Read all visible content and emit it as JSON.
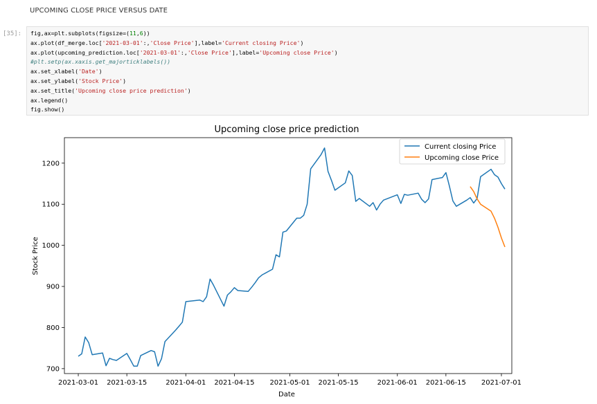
{
  "heading": "UPCOMING CLOSE PRICE VERSUS DATE",
  "cell": {
    "prompt": "[35]:",
    "lines": [
      {
        "text": "fig,ax=plt.subplots(figsize=(11,6))",
        "kind": "plain"
      },
      {
        "text": "ax.plot(df_merge.loc['2021-03-01':,'Close Price'],label='Current closing Price')",
        "kind": "plain"
      },
      {
        "text": "ax.plot(upcoming_prediction.loc['2021-03-01':,'Close Price'],label='Upcoming close Price')",
        "kind": "plain"
      },
      {
        "text": "#plt.setp(ax.xaxis.get_majorticklabels())",
        "kind": "comment"
      },
      {
        "text": "ax.set_xlabel('Date')",
        "kind": "plain"
      },
      {
        "text": "ax.set_ylabel('Stock Price')",
        "kind": "plain"
      },
      {
        "text": "ax.set_title('Upcoming close price prediction')",
        "kind": "plain"
      },
      {
        "text": "ax.legend()",
        "kind": "plain"
      },
      {
        "text": "fig.show()",
        "kind": "plain"
      }
    ]
  },
  "colors": {
    "series_current": "#1f77b4",
    "series_upcoming": "#ff7f0e",
    "axes": "#000000"
  },
  "chart_data": {
    "type": "line",
    "title": "Upcoming close price prediction",
    "xlabel": "Date",
    "ylabel": "Stock Price",
    "xlim": [
      "2021-02-25",
      "2021-07-04"
    ],
    "ylim": [
      688,
      1262
    ],
    "xticks": [
      "2021-03-01",
      "2021-03-15",
      "2021-04-01",
      "2021-04-15",
      "2021-05-01",
      "2021-05-15",
      "2021-06-01",
      "2021-06-15",
      "2021-07-01"
    ],
    "yticks": [
      700,
      800,
      900,
      1000,
      1100,
      1200
    ],
    "grid": false,
    "legend": "top-right",
    "series": [
      {
        "name": "Current closing Price",
        "x": [
          "2021-03-01",
          "2021-03-02",
          "2021-03-03",
          "2021-03-04",
          "2021-03-05",
          "2021-03-08",
          "2021-03-09",
          "2021-03-10",
          "2021-03-11",
          "2021-03-12",
          "2021-03-15",
          "2021-03-16",
          "2021-03-17",
          "2021-03-18",
          "2021-03-19",
          "2021-03-22",
          "2021-03-23",
          "2021-03-24",
          "2021-03-25",
          "2021-03-26",
          "2021-03-29",
          "2021-03-30",
          "2021-03-31",
          "2021-04-01",
          "2021-04-05",
          "2021-04-06",
          "2021-04-07",
          "2021-04-08",
          "2021-04-09",
          "2021-04-12",
          "2021-04-13",
          "2021-04-14",
          "2021-04-15",
          "2021-04-16",
          "2021-04-19",
          "2021-04-20",
          "2021-04-21",
          "2021-04-22",
          "2021-04-23",
          "2021-04-26",
          "2021-04-27",
          "2021-04-28",
          "2021-04-29",
          "2021-04-30",
          "2021-05-03",
          "2021-05-04",
          "2021-05-05",
          "2021-05-06",
          "2021-05-07",
          "2021-05-10",
          "2021-05-11",
          "2021-05-12",
          "2021-05-13",
          "2021-05-14",
          "2021-05-17",
          "2021-05-18",
          "2021-05-19",
          "2021-05-20",
          "2021-05-21",
          "2021-05-24",
          "2021-05-25",
          "2021-05-26",
          "2021-05-27",
          "2021-05-28",
          "2021-06-01",
          "2021-06-02",
          "2021-06-03",
          "2021-06-04",
          "2021-06-07",
          "2021-06-08",
          "2021-06-09",
          "2021-06-10",
          "2021-06-11",
          "2021-06-14",
          "2021-06-15",
          "2021-06-16",
          "2021-06-17",
          "2021-06-18",
          "2021-06-21",
          "2021-06-22",
          "2021-06-23",
          "2021-06-24",
          "2021-06-25",
          "2021-06-28",
          "2021-06-29",
          "2021-06-30",
          "2021-07-01",
          "2021-07-02"
        ],
        "values": [
          730,
          736,
          777,
          763,
          734,
          738,
          707,
          725,
          722,
          720,
          737,
          722,
          706,
          706,
          732,
          744,
          741,
          706,
          724,
          766,
          793,
          803,
          813,
          863,
          867,
          863,
          875,
          918,
          903,
          852,
          879,
          887,
          897,
          890,
          888,
          898,
          909,
          921,
          928,
          942,
          977,
          972,
          1032,
          1035,
          1066,
          1066,
          1073,
          1100,
          1186,
          1221,
          1237,
          1180,
          1158,
          1134,
          1152,
          1181,
          1170,
          1107,
          1114,
          1095,
          1104,
          1086,
          1100,
          1110,
          1123,
          1102,
          1124,
          1122,
          1127,
          1112,
          1104,
          1113,
          1160,
          1165,
          1177,
          1144,
          1108,
          1095,
          1110,
          1116,
          1103,
          1114,
          1167,
          1185,
          1172,
          1166,
          1150,
          1137
        ]
      },
      {
        "name": "Upcoming close Price",
        "x": [
          "2021-06-22",
          "2021-06-23",
          "2021-06-24",
          "2021-06-25",
          "2021-06-28",
          "2021-06-29",
          "2021-06-30",
          "2021-07-01",
          "2021-07-02"
        ],
        "values": [
          1143,
          1131,
          1113,
          1100,
          1083,
          1066,
          1044,
          1018,
          996
        ]
      }
    ]
  }
}
